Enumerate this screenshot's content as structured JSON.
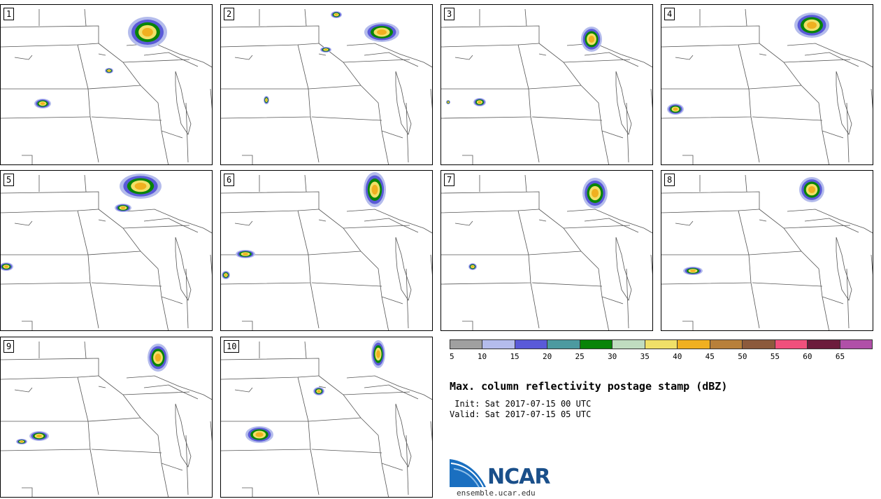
{
  "panels": [
    {
      "number": "1"
    },
    {
      "number": "2"
    },
    {
      "number": "3"
    },
    {
      "number": "4"
    },
    {
      "number": "5"
    },
    {
      "number": "6"
    },
    {
      "number": "7"
    },
    {
      "number": "8"
    },
    {
      "number": "9"
    },
    {
      "number": "10"
    }
  ],
  "legend": {
    "colors": [
      "#a0a0a0",
      "#b4bcec",
      "#5a5ad8",
      "#4c9aa0",
      "#088408",
      "#c0dcc0",
      "#f0e068",
      "#f0b020",
      "#b8803a",
      "#8c5a3c",
      "#f0507c",
      "#6c1c3c",
      "#b050a8"
    ],
    "ticks": [
      "5",
      "10",
      "15",
      "20",
      "25",
      "30",
      "35",
      "40",
      "45",
      "50",
      "55",
      "60",
      "65"
    ]
  },
  "title": "Max. column reflectivity postage stamp (dBZ)",
  "init_text": " Init: Sat 2017-07-15 00 UTC",
  "valid_text": "Valid: Sat 2017-07-15 05 UTC",
  "logo": {
    "text": "NCAR",
    "url": "ensemble.ucar.edu"
  }
}
